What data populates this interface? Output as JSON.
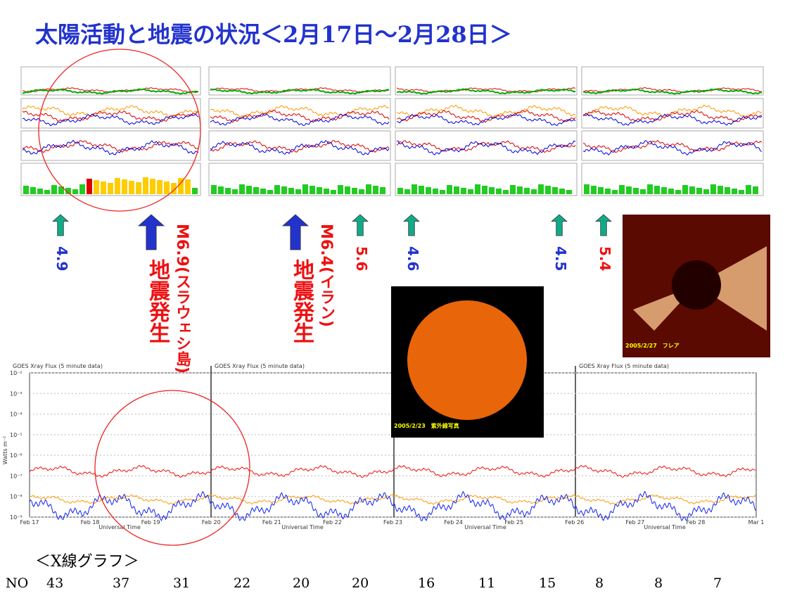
{
  "header": {
    "title": "太陽活動と地震の状況＜2月17日～2月28日＞"
  },
  "markers": [
    {
      "label": "4.9"
    },
    {
      "label": "M6.9(スラウェシ島)",
      "note": "地震発生"
    },
    {
      "label": "M6.4(イラン)",
      "note": "地震発生"
    },
    {
      "label": "5.6"
    },
    {
      "label": "4.6"
    },
    {
      "label": "4.5"
    },
    {
      "label": "5.4"
    }
  ],
  "photos": [
    {
      "caption": "2005/2/23　紫外線写真"
    },
    {
      "caption": "2005/2/27　フレア"
    }
  ],
  "xray_chart": {
    "title": "GOES Xray Flux (5 minute data)",
    "y_label": "Watts m⁻²",
    "x_label": "Universal Time",
    "yticks": [
      "10⁻²",
      "10⁻³",
      "10⁻⁴",
      "10⁻⁵",
      "10⁻⁶",
      "10⁻⁷",
      "10⁻⁸",
      "10⁻⁹"
    ],
    "xticks": [
      "Feb 17",
      "Feb 18",
      "Feb 19",
      "Feb 20",
      "Feb 21",
      "Feb 22",
      "Feb 23",
      "Feb 24",
      "Feb 25",
      "Feb 26",
      "Feb 27",
      "Feb 28",
      "Mar 1"
    ]
  },
  "footer": {
    "caption": "＜X線グラフ＞",
    "row_label": "NO",
    "numbers": [
      43,
      37,
      31,
      22,
      20,
      20,
      16,
      11,
      15,
      8,
      8,
      7
    ]
  }
}
